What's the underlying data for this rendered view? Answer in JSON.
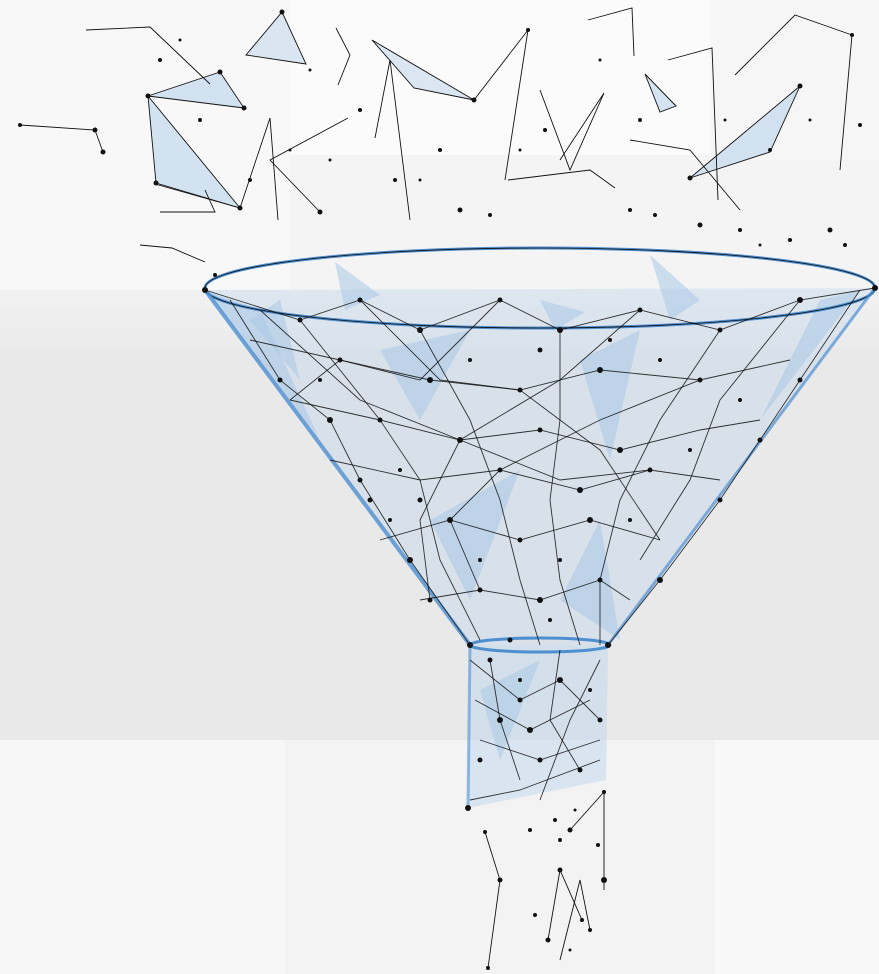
{
  "illustration": {
    "subject": "funnel-icon",
    "colors": {
      "background": "#f4f4f5",
      "line": "#111111",
      "fill": "#b9d3ea",
      "rim": "#4e8fd0"
    }
  }
}
